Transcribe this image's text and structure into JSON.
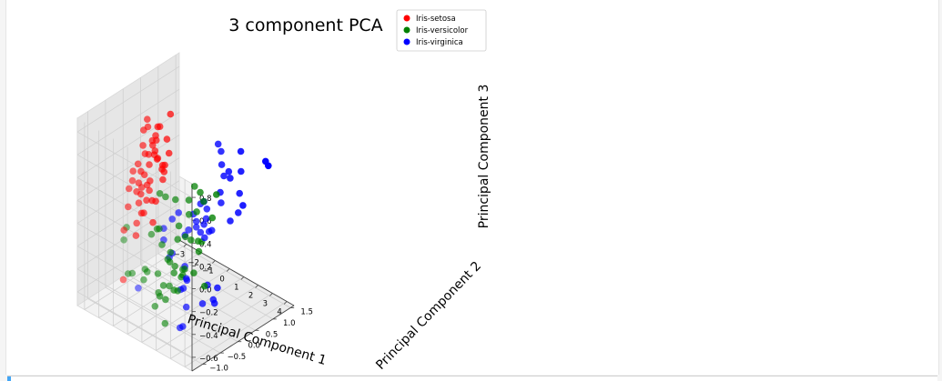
{
  "chart_data": {
    "type": "scatter",
    "projection": "3d",
    "title": "3 component PCA",
    "xlabel": "Principal Component 1",
    "ylabel": "Principal Component 2",
    "zlabel": "Principal Component 3",
    "xlim": [
      -3.5,
      4.5
    ],
    "ylim": [
      -1.3,
      1.6
    ],
    "zlim": [
      -0.72,
      0.92
    ],
    "x_ticks": [
      "−3",
      "−2",
      "−1",
      "0",
      "1",
      "2",
      "3",
      "4"
    ],
    "y_ticks": [
      "−1.0",
      "−0.5",
      "0.0",
      "0.5",
      "1.0",
      "1.5"
    ],
    "z_ticks": [
      "−0.6",
      "−0.4",
      "−0.2",
      "0.0",
      "0.2",
      "0.4",
      "0.6",
      "0.8"
    ],
    "grid": true,
    "legend_position": "top-right",
    "colors": {
      "Iris-setosa": "#ff0000",
      "Iris-versicolor": "#008000",
      "Iris-virginica": "#0000ff"
    },
    "series": [
      {
        "name": "Iris-setosa",
        "color": "#ff0000",
        "points": [
          [
            -2.6,
            0.2,
            0.45
          ],
          [
            -2.4,
            0.6,
            0.55
          ],
          [
            -2.7,
            0.3,
            0.35
          ],
          [
            -2.5,
            0.1,
            0.25
          ],
          [
            -2.8,
            0.4,
            0.05
          ],
          [
            -2.3,
            0.5,
            0.3
          ],
          [
            -2.2,
            0.2,
            0.4
          ],
          [
            -2.9,
            -0.1,
            -0.05
          ],
          [
            -2.6,
            0.8,
            0.1
          ],
          [
            -2.7,
            0.5,
            -0.1
          ],
          [
            -2.5,
            0.3,
            0.6
          ],
          [
            -2.4,
            0.0,
            0.0
          ],
          [
            -2.3,
            0.7,
            0.2
          ],
          [
            -2.6,
            -0.2,
            0.15
          ],
          [
            -2.8,
            0.1,
            0.05
          ],
          [
            -2.2,
            0.4,
            -0.05
          ],
          [
            -2.7,
            0.6,
            0.45
          ],
          [
            -2.5,
            0.9,
            0.25
          ],
          [
            -2.9,
            0.2,
            0.1
          ],
          [
            -2.3,
            -0.1,
            -0.15
          ],
          [
            -2.4,
            0.4,
            -0.25
          ],
          [
            -2.6,
            0.0,
            -0.3
          ],
          [
            -2.2,
            0.6,
            0.1
          ],
          [
            -2.8,
            0.7,
            0.5
          ],
          [
            -2.5,
            0.5,
            0.35
          ],
          [
            -2.7,
            -0.3,
            -0.2
          ],
          [
            -2.3,
            0.2,
            0.7
          ],
          [
            -2.6,
            0.3,
            -0.05
          ],
          [
            -2.4,
            0.8,
            0.4
          ],
          [
            -2.5,
            -0.4,
            -0.6
          ],
          [
            -2.9,
            0.5,
            0.2
          ],
          [
            -2.2,
            0.0,
            0.15
          ],
          [
            -2.7,
            0.1,
            0.3
          ],
          [
            -2.4,
            0.3,
            0.05
          ],
          [
            -2.6,
            0.6,
            0.25
          ],
          [
            -2.3,
            0.1,
            -0.1
          ],
          [
            -2.8,
            0.3,
            0.55
          ],
          [
            -2.5,
            0.7,
            0.15
          ],
          [
            -2.6,
            -0.1,
            0.2
          ],
          [
            -2.4,
            0.5,
            0.45
          ],
          [
            -2.7,
            0.2,
            -0.15
          ],
          [
            -2.3,
            0.4,
            0.35
          ],
          [
            -2.5,
            0.1,
            0.05
          ],
          [
            -2.8,
            0.0,
            0.25
          ],
          [
            -2.4,
            0.9,
            0.6
          ],
          [
            -2.2,
            0.3,
            0.5
          ],
          [
            -2.6,
            0.4,
            0.1
          ],
          [
            -2.9,
            0.6,
            0.35
          ],
          [
            -2.5,
            0.2,
            0.2
          ],
          [
            -2.7,
            0.8,
            0.15
          ]
        ]
      },
      {
        "name": "Iris-versicolor",
        "color": "#008000",
        "points": [
          [
            1.3,
            0.7,
            0.2
          ],
          [
            0.9,
            0.3,
            0.1
          ],
          [
            1.5,
            0.5,
            0.05
          ],
          [
            0.2,
            -0.7,
            0.05
          ],
          [
            1.1,
            0.0,
            0.15
          ],
          [
            0.6,
            -0.4,
            -0.2
          ],
          [
            1.0,
            0.3,
            -0.15
          ],
          [
            -0.8,
            -1.0,
            0.1
          ],
          [
            1.0,
            0.2,
            0.35
          ],
          [
            -0.1,
            -0.7,
            -0.3
          ],
          [
            -0.5,
            -1.2,
            0.05
          ],
          [
            0.4,
            -0.1,
            0.25
          ],
          [
            0.5,
            -0.6,
            0.1
          ],
          [
            0.8,
            -0.2,
            -0.05
          ],
          [
            -0.2,
            -0.3,
            0.3
          ],
          [
            0.9,
            0.5,
            0.15
          ],
          [
            0.6,
            -0.2,
            -0.3
          ],
          [
            0.2,
            -0.3,
            0.3
          ],
          [
            1.2,
            -0.6,
            -0.35
          ],
          [
            0.1,
            -0.5,
            0.05
          ],
          [
            1.0,
            0.1,
            -0.1
          ],
          [
            0.4,
            0.0,
            0.0
          ],
          [
            1.4,
            -0.3,
            -0.25
          ],
          [
            0.8,
            -0.1,
            -0.4
          ],
          [
            0.6,
            0.2,
            0.2
          ],
          [
            0.9,
            0.4,
            0.25
          ],
          [
            1.3,
            0.2,
            -0.2
          ],
          [
            1.5,
            0.2,
            -0.1
          ],
          [
            0.8,
            -0.2,
            -0.5
          ],
          [
            -0.2,
            -0.3,
            -0.6
          ],
          [
            0.0,
            -0.8,
            -0.25
          ],
          [
            -0.1,
            -0.8,
            -0.35
          ],
          [
            0.2,
            -0.4,
            -0.1
          ],
          [
            1.4,
            -0.3,
            -0.3
          ],
          [
            0.5,
            -0.3,
            -0.25
          ],
          [
            0.7,
            0.3,
            -0.45
          ],
          [
            1.2,
            0.4,
            -0.55
          ],
          [
            0.9,
            -0.6,
            -0.7
          ],
          [
            0.3,
            -0.1,
            -0.4
          ],
          [
            0.2,
            -0.6,
            -0.6
          ],
          [
            0.4,
            -0.6,
            -0.3
          ],
          [
            0.8,
            0.0,
            -0.35
          ],
          [
            0.2,
            -0.5,
            -0.5
          ],
          [
            -0.7,
            -1.0,
            -0.3
          ],
          [
            0.3,
            -0.4,
            -0.45
          ],
          [
            0.3,
            -0.1,
            -0.55
          ],
          [
            0.3,
            -0.2,
            -0.2
          ],
          [
            0.6,
            0.1,
            -0.1
          ],
          [
            -0.9,
            -0.8,
            -0.35
          ],
          [
            0.2,
            -0.3,
            -0.6
          ]
        ]
      },
      {
        "name": "Iris-virginica",
        "color": "#0000ff",
        "points": [
          [
            2.5,
            0.0,
            0.1
          ],
          [
            1.4,
            -0.6,
            -0.05
          ],
          [
            2.6,
            0.3,
            0.3
          ],
          [
            1.9,
            -0.2,
            0.25
          ],
          [
            2.3,
            0.0,
            0.2
          ],
          [
            3.4,
            0.5,
            0.4
          ],
          [
            0.5,
            -1.2,
            -0.3
          ],
          [
            3.0,
            0.4,
            0.15
          ],
          [
            2.3,
            -0.5,
            0.2
          ],
          [
            2.9,
            0.8,
            0.2
          ],
          [
            1.7,
            0.2,
            -0.05
          ],
          [
            1.8,
            -0.4,
            0.1
          ],
          [
            2.2,
            0.2,
            0.05
          ],
          [
            1.3,
            -0.8,
            0.1
          ],
          [
            1.6,
            -0.5,
            0.3
          ],
          [
            1.9,
            0.1,
            0.3
          ],
          [
            1.9,
            0.0,
            0.05
          ],
          [
            3.5,
            1.2,
            0.55
          ],
          [
            3.8,
            0.3,
            0.3
          ],
          [
            1.3,
            -0.8,
            0.2
          ],
          [
            2.4,
            0.4,
            0.6
          ],
          [
            1.2,
            -0.6,
            -0.1
          ],
          [
            3.5,
            0.5,
            0.6
          ],
          [
            1.4,
            -0.2,
            -0.35
          ],
          [
            2.3,
            0.4,
            0.35
          ],
          [
            2.5,
            0.6,
            0.45
          ],
          [
            1.3,
            -0.2,
            -0.25
          ],
          [
            1.2,
            -0.1,
            -0.4
          ],
          [
            2.1,
            -0.2,
            0.15
          ],
          [
            2.4,
            0.6,
            0.5
          ],
          [
            2.8,
            0.3,
            0.55
          ],
          [
            3.2,
            1.4,
            0.45
          ],
          [
            2.1,
            -0.2,
            0.2
          ],
          [
            1.4,
            -0.2,
            -0.6
          ],
          [
            1.7,
            -0.5,
            -0.7
          ],
          [
            3.0,
            0.7,
            0.7
          ],
          [
            2.1,
            0.1,
            0.25
          ],
          [
            1.9,
            0.0,
            0.3
          ],
          [
            1.2,
            -0.2,
            -0.45
          ],
          [
            2.1,
            0.4,
            -0.5
          ],
          [
            2.3,
            0.2,
            -0.55
          ],
          [
            1.9,
            0.4,
            -0.65
          ],
          [
            1.4,
            -0.6,
            0.25
          ],
          [
            2.6,
            0.3,
            0.75
          ],
          [
            2.4,
            0.3,
            0.8
          ],
          [
            1.9,
            0.2,
            -0.45
          ],
          [
            1.5,
            -0.4,
            -0.4
          ],
          [
            1.8,
            0.1,
            -0.6
          ],
          [
            1.9,
            0.1,
            0.1
          ],
          [
            1.4,
            -0.3,
            -0.75
          ]
        ]
      }
    ]
  }
}
